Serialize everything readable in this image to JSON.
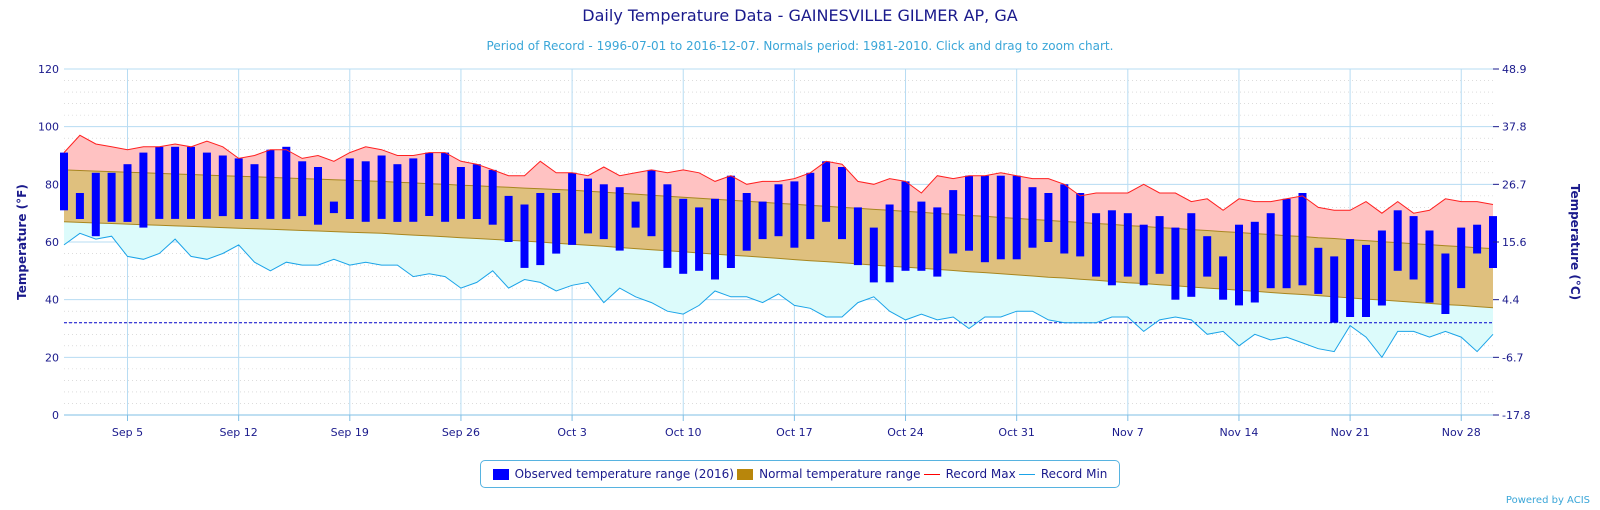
{
  "chart_data": {
    "type": "bar",
    "title": "Daily Temperature Data - GAINESVILLE GILMER AP, GA",
    "subtitle": "Period of Record - 1996-07-01 to 2016-12-07. Normals period: 1981-2010. Click and drag to zoom chart.",
    "ylabel": "Temperature (°F)",
    "ylabel_right": "Temperature (°C)",
    "ylim": [
      0,
      120
    ],
    "yticks": [
      "0",
      "20",
      "40",
      "60",
      "80",
      "100",
      "120"
    ],
    "yticks_right": [
      "-17.8",
      "-6.7",
      "4.4",
      "15.6",
      "26.7",
      "37.8",
      "48.9"
    ],
    "x_start": "2016-09-01",
    "x_end": "2016-11-30",
    "xtick_labels": [
      "Sep 5",
      "Sep 12",
      "Sep 19",
      "Sep 26",
      "Oct 3",
      "Oct 10",
      "Oct 17",
      "Oct 24",
      "Oct 31",
      "Nov 7",
      "Nov 14",
      "Nov 21",
      "Nov 28"
    ],
    "reference_line": 32,
    "observed_high": [
      91,
      77,
      84,
      84,
      87,
      91,
      93,
      93,
      93,
      91,
      90,
      89,
      87,
      92,
      93,
      88,
      86,
      74,
      89,
      88,
      90,
      87,
      89,
      91,
      91,
      86,
      87,
      85,
      76,
      73,
      77,
      77,
      84,
      82,
      80,
      79,
      74,
      85,
      80,
      75,
      72,
      75,
      83,
      77,
      74,
      80,
      81,
      84,
      88,
      86,
      72,
      65,
      73,
      81,
      74,
      72,
      78,
      83,
      83,
      83,
      83,
      79,
      77,
      80,
      77,
      70,
      71,
      70,
      66,
      69,
      65,
      70,
      62,
      55,
      66,
      67,
      70,
      75,
      77,
      58,
      55,
      61,
      59,
      64,
      71,
      69,
      64,
      56,
      65,
      66,
      69
    ],
    "observed_low": [
      71,
      68,
      62,
      67,
      67,
      65,
      68,
      68,
      68,
      68,
      69,
      68,
      68,
      68,
      68,
      69,
      66,
      70,
      68,
      67,
      68,
      67,
      67,
      69,
      67,
      68,
      68,
      66,
      60,
      51,
      52,
      56,
      59,
      63,
      61,
      57,
      65,
      62,
      51,
      49,
      50,
      47,
      51,
      57,
      61,
      62,
      58,
      61,
      67,
      61,
      52,
      46,
      46,
      50,
      50,
      48,
      56,
      57,
      53,
      54,
      54,
      58,
      60,
      56,
      55,
      48,
      45,
      48,
      45,
      49,
      40,
      41,
      48,
      40,
      38,
      39,
      44,
      44,
      45,
      42,
      32,
      34,
      34,
      38,
      50,
      47,
      39,
      35,
      44,
      56,
      51
    ],
    "normal_high": [
      85.0,
      84.8,
      84.6,
      84.4,
      84.2,
      84.0,
      83.8,
      83.6,
      83.4,
      83.2,
      83.0,
      82.8,
      82.6,
      82.4,
      82.2,
      82.0,
      81.8,
      81.6,
      81.4,
      81.2,
      81.0,
      80.7,
      80.5,
      80.2,
      80.0,
      79.7,
      79.5,
      79.2,
      79.0,
      78.7,
      78.5,
      78.2,
      78.0,
      77.6,
      77.3,
      76.9,
      76.6,
      76.2,
      75.9,
      75.5,
      75.2,
      74.8,
      74.5,
      74.1,
      73.8,
      73.4,
      73.1,
      72.7,
      72.4,
      72.0,
      71.7,
      71.3,
      71.0,
      70.6,
      70.3,
      69.9,
      69.6,
      69.2,
      68.9,
      68.5,
      68.2,
      67.8,
      67.5,
      67.1,
      66.8,
      66.4,
      66.1,
      65.7,
      65.4,
      65.0,
      64.7,
      64.3,
      64.0,
      63.6,
      63.3,
      62.9,
      62.6,
      62.2,
      61.9,
      61.5,
      61.2,
      60.8,
      60.5,
      60.1,
      59.8,
      59.4,
      59.1,
      58.7,
      58.4,
      58.0,
      57.7
    ],
    "normal_low": [
      67.0,
      66.8,
      66.6,
      66.4,
      66.2,
      66.0,
      65.8,
      65.6,
      65.4,
      65.2,
      65.0,
      64.8,
      64.6,
      64.4,
      64.2,
      64.0,
      63.8,
      63.6,
      63.4,
      63.2,
      63.0,
      62.7,
      62.4,
      62.1,
      61.8,
      61.5,
      61.2,
      60.9,
      60.6,
      60.3,
      60.0,
      59.6,
      59.2,
      58.9,
      58.5,
      58.1,
      57.7,
      57.3,
      57.0,
      56.6,
      56.2,
      55.8,
      55.4,
      55.1,
      54.7,
      54.3,
      53.9,
      53.5,
      53.2,
      52.8,
      52.4,
      52.0,
      51.6,
      51.3,
      50.9,
      50.5,
      50.1,
      49.7,
      49.4,
      49.0,
      48.6,
      48.2,
      47.8,
      47.5,
      47.1,
      46.7,
      46.3,
      45.9,
      45.6,
      45.2,
      44.8,
      44.4,
      44.0,
      43.7,
      43.3,
      42.9,
      42.5,
      42.1,
      41.8,
      41.4,
      41.0,
      40.6,
      40.2,
      39.9,
      39.5,
      39.1,
      38.7,
      38.3,
      38.0,
      37.6,
      37.2
    ],
    "record_max": [
      91,
      97,
      94,
      93,
      92,
      93,
      93,
      94,
      93,
      95,
      93,
      89,
      90,
      92,
      92,
      89,
      90,
      88,
      91,
      93,
      92,
      90,
      90,
      91,
      91,
      88,
      87,
      85,
      83,
      83,
      88,
      84,
      84,
      83,
      86,
      83,
      84,
      85,
      84,
      85,
      84,
      81,
      83,
      80,
      81,
      81,
      82,
      84,
      88,
      87,
      81,
      80,
      82,
      81,
      77,
      83,
      82,
      83,
      83,
      84,
      83,
      82,
      82,
      80,
      76,
      77,
      77,
      77,
      80,
      77,
      77,
      74,
      75,
      71,
      75,
      74,
      74,
      75,
      76,
      72,
      71,
      71,
      74,
      70,
      74,
      70,
      71,
      75,
      74,
      74,
      73
    ],
    "record_min": [
      59,
      63,
      61,
      62,
      55,
      54,
      56,
      61,
      55,
      54,
      56,
      59,
      53,
      50,
      53,
      52,
      52,
      54,
      52,
      53,
      52,
      52,
      48,
      49,
      48,
      44,
      46,
      50,
      44,
      47,
      46,
      43,
      45,
      46,
      39,
      44,
      41,
      39,
      36,
      35,
      38,
      43,
      41,
      41,
      39,
      42,
      38,
      37,
      34,
      34,
      39,
      41,
      36,
      33,
      35,
      33,
      34,
      30,
      34,
      34,
      36,
      36,
      33,
      32,
      32,
      32,
      34,
      34,
      29,
      33,
      34,
      33,
      28,
      29,
      24,
      28,
      26,
      27,
      25,
      23,
      22,
      31,
      27,
      20,
      29,
      29,
      27,
      29,
      27,
      22,
      28
    ],
    "legend": [
      {
        "label": "Observed temperature range (2016)",
        "color": "#0000ff"
      },
      {
        "label": "Normal temperature range",
        "color": "#b8860b"
      },
      {
        "label": "Record Max",
        "color": "#ff0000"
      },
      {
        "label": "Record Min",
        "color": "#1aa3e8"
      }
    ],
    "grid": true,
    "legend_position": "bottom-center"
  },
  "credit": "Powered by ACIS"
}
